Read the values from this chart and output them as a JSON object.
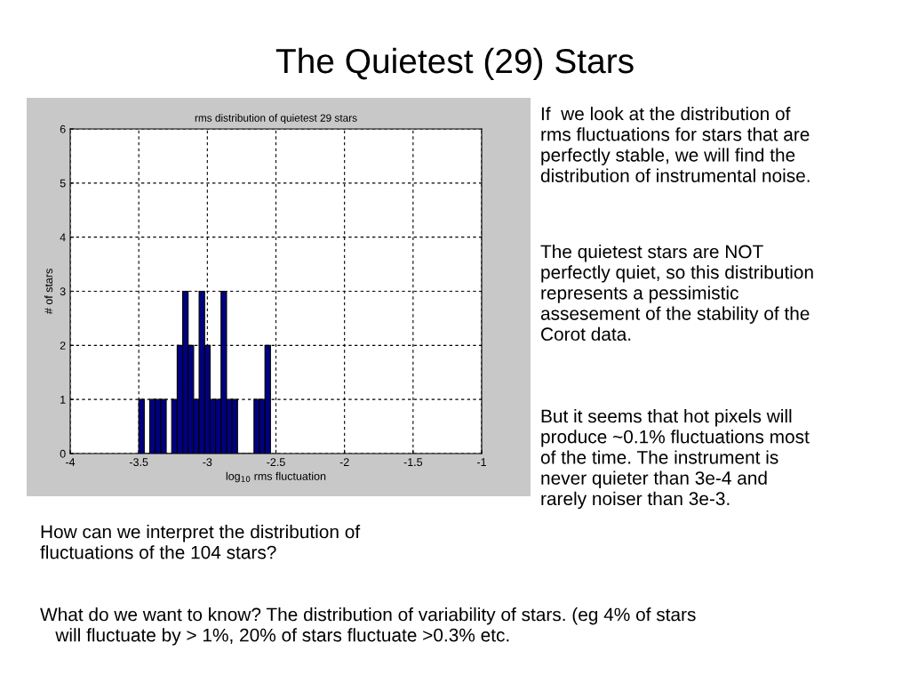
{
  "chart_data": {
    "type": "histogram",
    "title": "The Quietest (29) Stars",
    "subtitle": "rms distribution of quietest 29 stars",
    "xlabel": "log$_{10}$ rms fluctuation",
    "ylabel": "# of stars",
    "bins": [
      -3.5,
      -3.46,
      -3.42,
      -3.38,
      -3.34,
      -3.3,
      -3.26,
      -3.22,
      -3.18,
      -3.14,
      -3.1,
      -3.06,
      -3.02,
      -2.98,
      -2.94,
      -2.9,
      -2.86,
      -2.82,
      -2.78,
      -2.74,
      -2.7,
      -2.66,
      -2.62,
      -2.58,
      -2.54
    ],
    "values": [
      1,
      0,
      1,
      1,
      1,
      0,
      1,
      2,
      3,
      2,
      1,
      3,
      2,
      1,
      1,
      3,
      1,
      1,
      0,
      0,
      0,
      1,
      1,
      2
    ],
    "color": "#000080",
    "xlim": [
      -4,
      -1
    ],
    "xticks": [
      -4,
      -3.5,
      -3,
      -2.5,
      -2,
      -1.5,
      -1
    ],
    "ylim": [
      0,
      6
    ],
    "yticks": [
      0,
      1,
      2,
      3,
      4,
      5,
      6
    ],
    "grid": true,
    "line_style": "dashed",
    "annotations": [
      "If  we look at the distribution of\nrms fluctuations for stars that are\nperfectly stable, we will find the\ndistribution of instrumental noise.",
      "The quietest stars are NOT\nperfectly quiet, so this distribution\nrepresents a pessimistic\nassesement of the stability of the\nCorot data.",
      "But it seems that hot pixels will\nproduce ~0.1% fluctuations most\nof the time. The instrument is\nnever quieter than 3e-4 and\nrarely noiser than 3e-3.",
      "How can we interpret the distribution of\nfluctuations of the 104 stars?",
      "What do we want to know? The distribution of variability of stars. (eg 4% of stars\n   will fluctuate by > 1%, 20% of stars fluctuate >0.3% etc."
    ]
  }
}
